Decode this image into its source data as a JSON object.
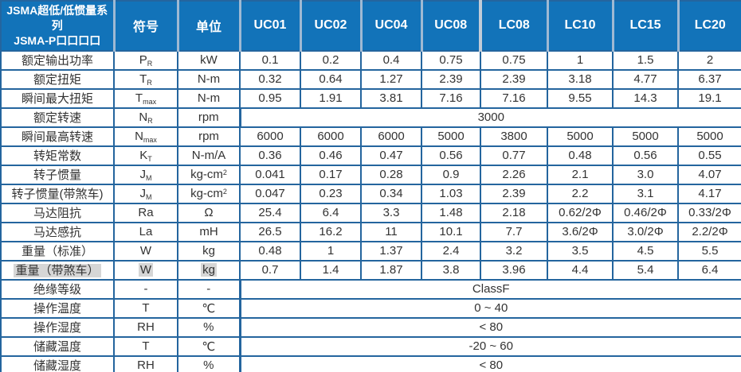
{
  "table": {
    "title_line1": "JSMA超低/低惯量系列",
    "title_line2": "JSMA-P口口口口",
    "header": {
      "symbol": "符号",
      "unit": "单位",
      "models": [
        "UC01",
        "UC02",
        "UC04",
        "UC08",
        "LC08",
        "LC10",
        "LC15",
        "LC20"
      ]
    },
    "rows": [
      {
        "label": "额定输出功率",
        "symbol": "P",
        "symbol_sub": "R",
        "unit": "kW",
        "values": [
          "0.1",
          "0.2",
          "0.4",
          "0.75",
          "0.75",
          "1",
          "1.5",
          "2"
        ]
      },
      {
        "label": "额定扭矩",
        "symbol": "T",
        "symbol_sub": "R",
        "unit": "N-m",
        "values": [
          "0.32",
          "0.64",
          "1.27",
          "2.39",
          "2.39",
          "3.18",
          "4.77",
          "6.37"
        ]
      },
      {
        "label": "瞬间最大扭矩",
        "symbol": "T",
        "symbol_sub": "max",
        "unit": "N-m",
        "values": [
          "0.95",
          "1.91",
          "3.81",
          "7.16",
          "7.16",
          "9.55",
          "14.3",
          "19.1"
        ]
      },
      {
        "label": "额定转速",
        "symbol": "N",
        "symbol_sub": "R",
        "unit": "rpm",
        "merged": "3000"
      },
      {
        "label": "瞬间最高转速",
        "symbol": "N",
        "symbol_sub": "max",
        "unit": "rpm",
        "values": [
          "6000",
          "6000",
          "6000",
          "5000",
          "3800",
          "5000",
          "5000",
          "5000"
        ]
      },
      {
        "label": "转矩常数",
        "symbol": "K",
        "symbol_sub": "T",
        "unit": "N-m/A",
        "values": [
          "0.36",
          "0.46",
          "0.47",
          "0.56",
          "0.77",
          "0.48",
          "0.56",
          "0.55"
        ]
      },
      {
        "label": "转子惯量",
        "symbol": "J",
        "symbol_sub": "M",
        "unit": "kg-cm",
        "unit_sup": "2",
        "values": [
          "0.041",
          "0.17",
          "0.28",
          "0.9",
          "2.26",
          "2.1",
          "3.0",
          "4.07"
        ]
      },
      {
        "label": "转子惯量(带煞车)",
        "symbol": "J",
        "symbol_sub": "M",
        "unit": "kg-cm",
        "unit_sup": "2",
        "values": [
          "0.047",
          "0.23",
          "0.34",
          "1.03",
          "2.39",
          "2.2",
          "3.1",
          "4.17"
        ]
      },
      {
        "label": "马达阻抗",
        "symbol": "Ra",
        "unit": "Ω",
        "values": [
          "25.4",
          "6.4",
          "3.3",
          "1.48",
          "2.18",
          "0.62/2Φ",
          "0.46/2Φ",
          "0.33/2Φ"
        ]
      },
      {
        "label": "马达感抗",
        "symbol": "La",
        "unit": "mH",
        "values": [
          "26.5",
          "16.2",
          "11",
          "10.1",
          "7.7",
          "3.6/2Φ",
          "3.0/2Φ",
          "2.2/2Φ"
        ]
      },
      {
        "label": "重量（标准）",
        "symbol": "W",
        "unit": "kg",
        "values": [
          "0.48",
          "1",
          "1.37",
          "2.4",
          "3.2",
          "3.5",
          "4.5",
          "5.5"
        ]
      },
      {
        "label": "重量（带煞车）",
        "symbol": "W",
        "unit": "kg",
        "highlighted": true,
        "values": [
          "0.7",
          "1.4",
          "1.87",
          "3.8",
          "3.96",
          "4.4",
          "5.4",
          "6.4"
        ]
      },
      {
        "label": "绝缘等级",
        "symbol": "-",
        "unit": "-",
        "merged": "ClassF"
      },
      {
        "label": "操作温度",
        "symbol": "T",
        "unit": "℃",
        "merged": "0 ~ 40"
      },
      {
        "label": "操作湿度",
        "symbol": "RH",
        "unit": "%",
        "merged": "< 80"
      },
      {
        "label": "储藏温度",
        "symbol": "T",
        "unit": "℃",
        "merged": "-20 ~ 60"
      },
      {
        "label": "储藏湿度",
        "symbol": "RH",
        "unit": "%",
        "merged": "< 80"
      }
    ],
    "colors": {
      "header_bg": "#1273b9",
      "cell_border": "#24659e",
      "header_separator": "#9fb9d3",
      "series_separator": "#c2ccd7",
      "body_text": "#333333",
      "highlight": "#d6d6d6"
    }
  }
}
